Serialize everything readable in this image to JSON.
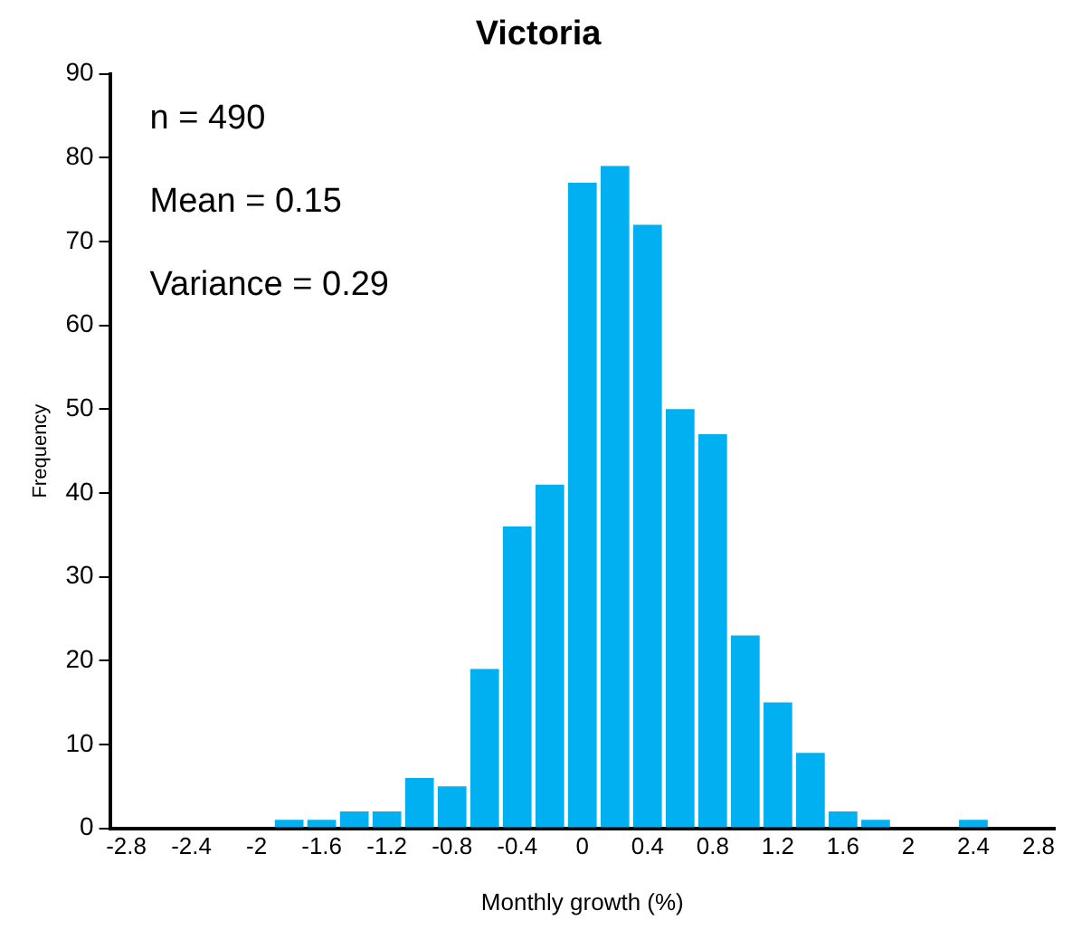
{
  "chart_data": {
    "type": "histogram",
    "title": "Victoria",
    "xlabel": "Monthly growth (%)",
    "ylabel": "Frequency",
    "annotations": [
      "n = 490",
      "Mean = 0.15",
      "Variance = 0.29"
    ],
    "bins": [
      -2.9,
      -2.7,
      -2.5,
      -2.3,
      -2.1,
      -1.9,
      -1.7,
      -1.5,
      -1.3,
      -1.1,
      -0.9,
      -0.7,
      -0.5,
      -0.3,
      -0.1,
      0.1,
      0.3,
      0.5,
      0.7,
      0.9,
      1.1,
      1.3,
      1.5,
      1.7,
      1.9,
      2.1,
      2.3,
      2.5,
      2.7,
      2.9
    ],
    "values": [
      0,
      0,
      0,
      0,
      0,
      1,
      1,
      2,
      2,
      6,
      5,
      19,
      36,
      41,
      77,
      79,
      72,
      50,
      47,
      23,
      15,
      9,
      2,
      1,
      0,
      0,
      1,
      0,
      0
    ],
    "color": "#00b0f0",
    "xlim": [
      -2.9,
      2.9
    ],
    "xticks": [
      -2.8,
      -2.4,
      -2,
      -1.6,
      -1.2,
      -0.8,
      -0.4,
      0,
      0.4,
      0.8,
      1.2,
      1.6,
      2,
      2.4,
      2.8
    ],
    "ylim": [
      0,
      90
    ],
    "yticks": [
      0,
      10,
      20,
      30,
      40,
      50,
      60,
      70,
      80,
      90
    ],
    "grid": false,
    "legend": false
  }
}
